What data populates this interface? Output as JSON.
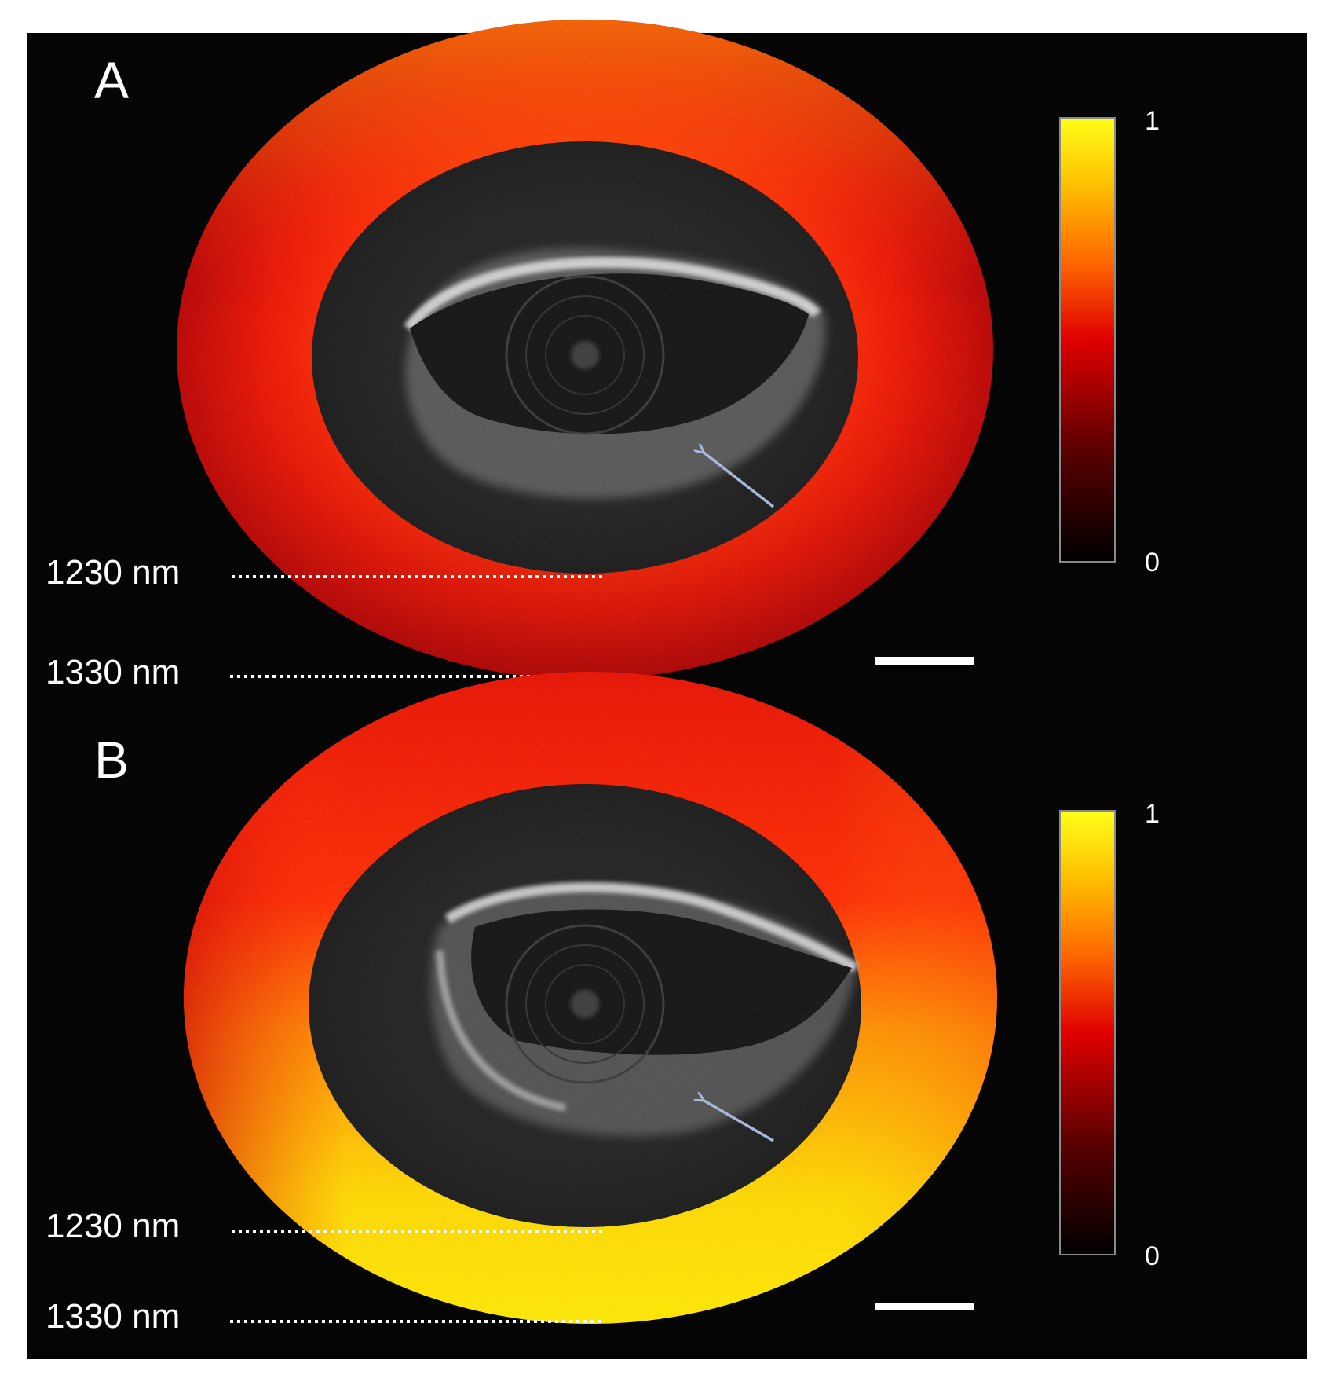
{
  "figure": {
    "panels": [
      {
        "letter": "A",
        "wavelength_labels": [
          "1230 nm",
          "1330 nm"
        ],
        "colorbar": {
          "max_label": "1",
          "min_label": "0"
        },
        "ring_intensity": "red"
      },
      {
        "letter": "B",
        "wavelength_labels": [
          "1230 nm",
          "1330 nm"
        ],
        "colorbar": {
          "max_label": "1",
          "min_label": "0"
        },
        "ring_intensity": "yellow-bottom"
      }
    ],
    "colormap": [
      "#000000",
      "#5a0000",
      "#e00000",
      "#ff6a00",
      "#ffc000",
      "#ffff1a"
    ],
    "colors": {
      "background": "#050505",
      "arrow": "#a8b8d8",
      "scalebar": "#ffffff"
    }
  }
}
